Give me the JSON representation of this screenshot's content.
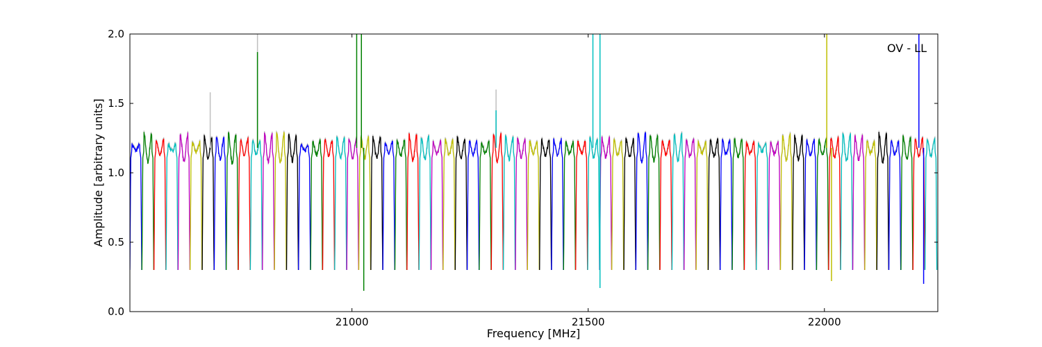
{
  "chart_data": {
    "type": "line",
    "title": "",
    "annotation": "OV - LL",
    "xlabel": "Frequency [MHz]",
    "ylabel": "Amplitude [arbitrary units]",
    "xlim": [
      20530,
      22240
    ],
    "ylim": [
      0.0,
      2.0
    ],
    "xticks": [
      {
        "value": 21000,
        "label": "21000"
      },
      {
        "value": 21500,
        "label": "21500"
      },
      {
        "value": 22000,
        "label": "22000"
      }
    ],
    "yticks": [
      {
        "value": 0.0,
        "label": "0.0"
      },
      {
        "value": 0.5,
        "label": "0.5"
      },
      {
        "value": 1.0,
        "label": "1.0"
      },
      {
        "value": 1.5,
        "label": "1.5"
      },
      {
        "value": 2.0,
        "label": "2.0"
      }
    ],
    "grid": false,
    "background_trace_color": "#bfbfbf",
    "channel_colors": [
      "#0000ff",
      "#008000",
      "#ff0000",
      "#00bfbf",
      "#bf00bf",
      "#bfbf00",
      "#000000"
    ],
    "channels": {
      "start_frequency": 20530,
      "width": 25.5,
      "count": 67,
      "top_amplitude": 1.18,
      "edge_amplitude": 0.3
    },
    "spikes": [
      {
        "x": 20800,
        "y": 2.0,
        "color": "#bfbfbf"
      },
      {
        "x": 20800,
        "y": 1.87,
        "color": "#008000"
      },
      {
        "x": 20700,
        "y": 1.58,
        "color": "#bfbfbf"
      },
      {
        "x": 21010,
        "y": 2.0,
        "color": "#008000"
      },
      {
        "x": 21020,
        "y": 2.0,
        "color": "#008000"
      },
      {
        "x": 21025,
        "y": 0.15,
        "color": "#008000"
      },
      {
        "x": 21305,
        "y": 1.6,
        "color": "#bfbfbf"
      },
      {
        "x": 21305,
        "y": 1.45,
        "color": "#00bfbf"
      },
      {
        "x": 21510,
        "y": 2.0,
        "color": "#00bfbf"
      },
      {
        "x": 21525,
        "y": 2.0,
        "color": "#00bfbf"
      },
      {
        "x": 21525,
        "y": 0.17,
        "color": "#00bfbf"
      },
      {
        "x": 22005,
        "y": 2.0,
        "color": "#bfbf00"
      },
      {
        "x": 22015,
        "y": 0.22,
        "color": "#bfbf00"
      },
      {
        "x": 22200,
        "y": 2.0,
        "color": "#0000ff"
      },
      {
        "x": 22210,
        "y": 0.2,
        "color": "#0000ff"
      }
    ]
  }
}
